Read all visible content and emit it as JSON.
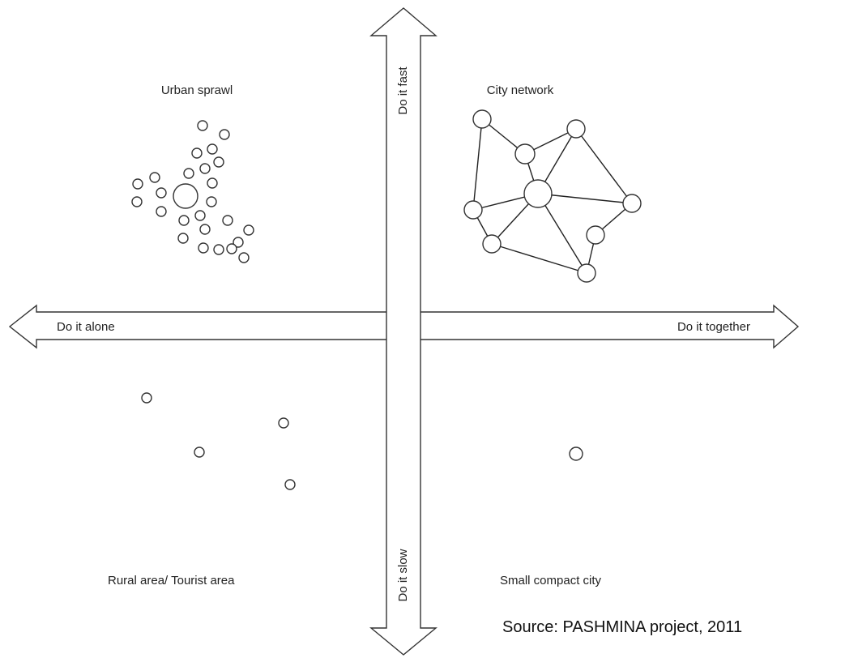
{
  "axes": {
    "left": "Do it alone",
    "right": "Do it together",
    "top": "Do it fast",
    "bottom": "Do it slow"
  },
  "quadrants": {
    "top_left": "Urban sprawl",
    "top_right": "City network",
    "bottom_left": "Rural area/ Tourist area",
    "bottom_right": "Small compact city"
  },
  "source": "Source: PASHMINA project, 2011",
  "colors": {
    "stroke": "#333333",
    "background": "#ffffff",
    "text": "#222222"
  }
}
